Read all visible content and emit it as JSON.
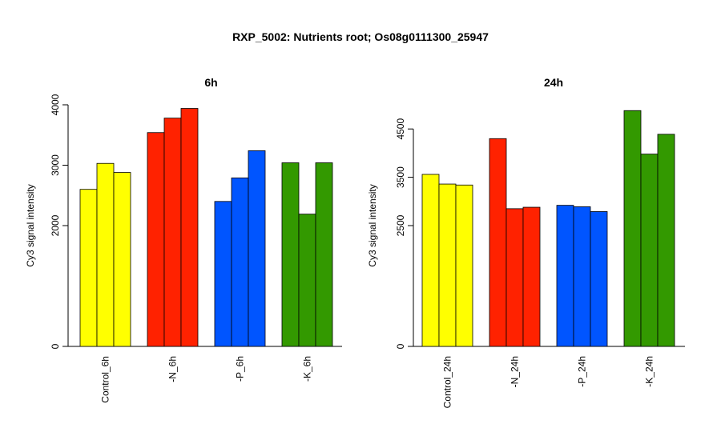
{
  "title": "RXP_5002: Nutrients root; Os08g0111300_25947",
  "colors": {
    "control": "#ffff00",
    "N": "#ff2200",
    "P": "#0055ff",
    "K": "#339900"
  },
  "chart_data": [
    {
      "type": "bar",
      "title": "6h",
      "ylabel": "Cy3 signal intensity",
      "xlabel": "",
      "yticks": [
        0,
        2000,
        3000,
        4000
      ],
      "ylim": [
        0,
        4000
      ],
      "grid": false,
      "groups": [
        {
          "label": "Control_6h",
          "color_key": "control",
          "values": [
            2600,
            3030,
            2880
          ]
        },
        {
          "label": "-N_6h",
          "color_key": "N",
          "values": [
            3540,
            3780,
            3940
          ]
        },
        {
          "label": "-P_6h",
          "color_key": "P",
          "values": [
            2400,
            2790,
            3240
          ]
        },
        {
          "label": "-K_6h",
          "color_key": "K",
          "values": [
            3040,
            2190,
            3040
          ]
        }
      ]
    },
    {
      "type": "bar",
      "title": "24h",
      "ylabel": "Cy3 signal intensity",
      "xlabel": "",
      "yticks": [
        0,
        2500,
        3500,
        4500
      ],
      "ylim": [
        0,
        5000
      ],
      "grid": false,
      "groups": [
        {
          "label": "Control_24h",
          "color_key": "control",
          "values": [
            3560,
            3360,
            3340
          ]
        },
        {
          "label": "-N_24h",
          "color_key": "N",
          "values": [
            4300,
            2850,
            2880
          ]
        },
        {
          "label": "-P_24h",
          "color_key": "P",
          "values": [
            2920,
            2890,
            2790
          ]
        },
        {
          "label": "-K_24h",
          "color_key": "K",
          "values": [
            4880,
            3980,
            4390
          ]
        }
      ]
    }
  ]
}
